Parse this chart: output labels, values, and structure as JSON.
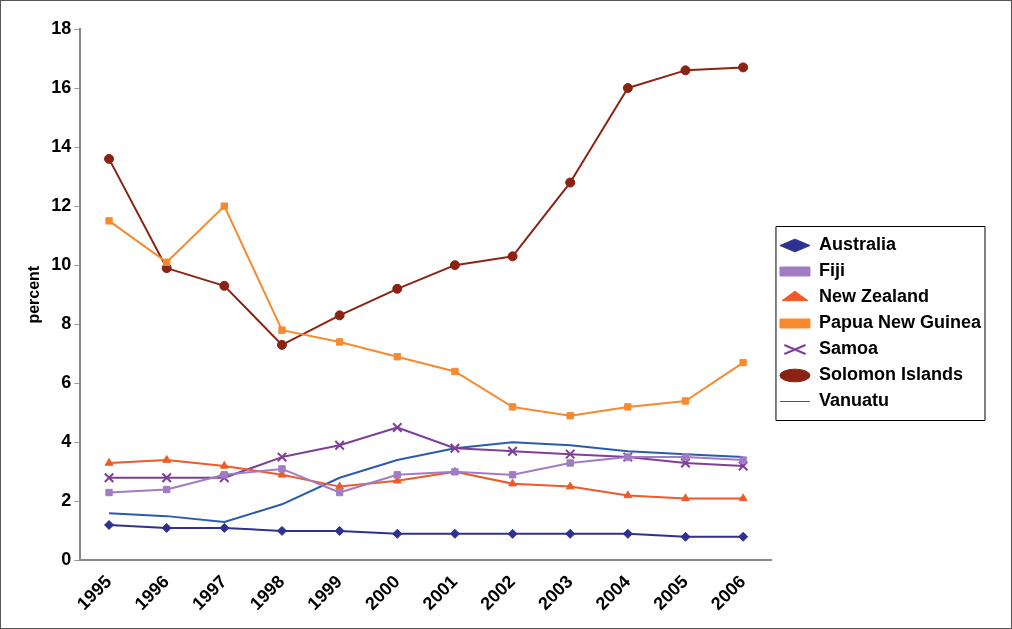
{
  "chart_data": {
    "type": "line",
    "ylabel": "percent",
    "categories": [
      "1995",
      "1996",
      "1997",
      "1998",
      "1999",
      "2000",
      "2001",
      "2002",
      "2003",
      "2004",
      "2005",
      "2006"
    ],
    "ylim": [
      0,
      18
    ],
    "yticks": [
      0,
      2,
      4,
      6,
      8,
      10,
      12,
      14,
      16,
      18
    ],
    "grid": false,
    "legend": "right",
    "line_style": "solid",
    "series": [
      {
        "name": "Australia",
        "color": "#2e3192",
        "marker": "diamond",
        "values": [
          1.2,
          1.1,
          1.1,
          1.0,
          1.0,
          0.9,
          0.9,
          0.9,
          0.9,
          0.9,
          0.8,
          0.8
        ]
      },
      {
        "name": "Fiji",
        "color": "#a07cc5",
        "marker": "square",
        "values": [
          2.3,
          2.4,
          2.9,
          3.1,
          2.3,
          2.9,
          3.0,
          2.9,
          3.3,
          3.5,
          3.5,
          3.4
        ]
      },
      {
        "name": "New Zealand",
        "color": "#f05a28",
        "marker": "triangle",
        "values": [
          3.3,
          3.4,
          3.2,
          2.9,
          2.5,
          2.7,
          3.0,
          2.6,
          2.5,
          2.2,
          2.1,
          2.1
        ]
      },
      {
        "name": "Papua New Guinea",
        "color": "#f7892e",
        "marker": "square",
        "values": [
          11.5,
          10.1,
          12.0,
          7.8,
          7.4,
          6.9,
          6.4,
          5.2,
          4.9,
          5.2,
          5.4,
          6.7
        ]
      },
      {
        "name": "Samoa",
        "color": "#7f3f98",
        "marker": "cross",
        "values": [
          2.8,
          2.8,
          2.8,
          3.5,
          3.9,
          4.5,
          3.8,
          3.7,
          3.6,
          3.5,
          3.3,
          3.2
        ]
      },
      {
        "name": "Solomon Islands",
        "color": "#8b2312",
        "marker": "circle",
        "values": [
          13.6,
          9.9,
          9.3,
          7.3,
          8.3,
          9.2,
          10.0,
          10.3,
          12.8,
          16.0,
          16.6,
          16.7
        ]
      },
      {
        "name": "Vanuatu",
        "color": "#2a5caa",
        "marker": "none",
        "values": [
          1.6,
          1.5,
          1.3,
          1.9,
          2.8,
          3.4,
          3.8,
          4.0,
          3.9,
          3.7,
          3.6,
          3.5
        ]
      }
    ]
  }
}
